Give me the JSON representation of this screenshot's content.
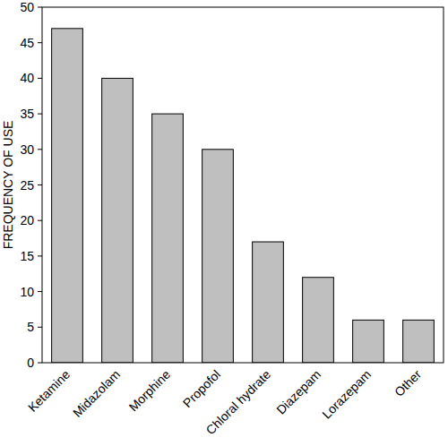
{
  "chart_data": {
    "type": "bar",
    "y_label": "FREQUENCY OF USE",
    "categories": [
      "Ketamine",
      "Midazolam",
      "Morphine",
      "Propofol",
      "Chloral hydrate",
      "Diazepam",
      "Lorazepam",
      "Other"
    ],
    "values": [
      47,
      40,
      35,
      30,
      17,
      12,
      6,
      6
    ],
    "color": "#bfbfbf",
    "ylim": [
      0,
      50
    ],
    "yticks": [
      0,
      5,
      10,
      15,
      20,
      25,
      30,
      35,
      40,
      45,
      50
    ],
    "grid": false
  }
}
